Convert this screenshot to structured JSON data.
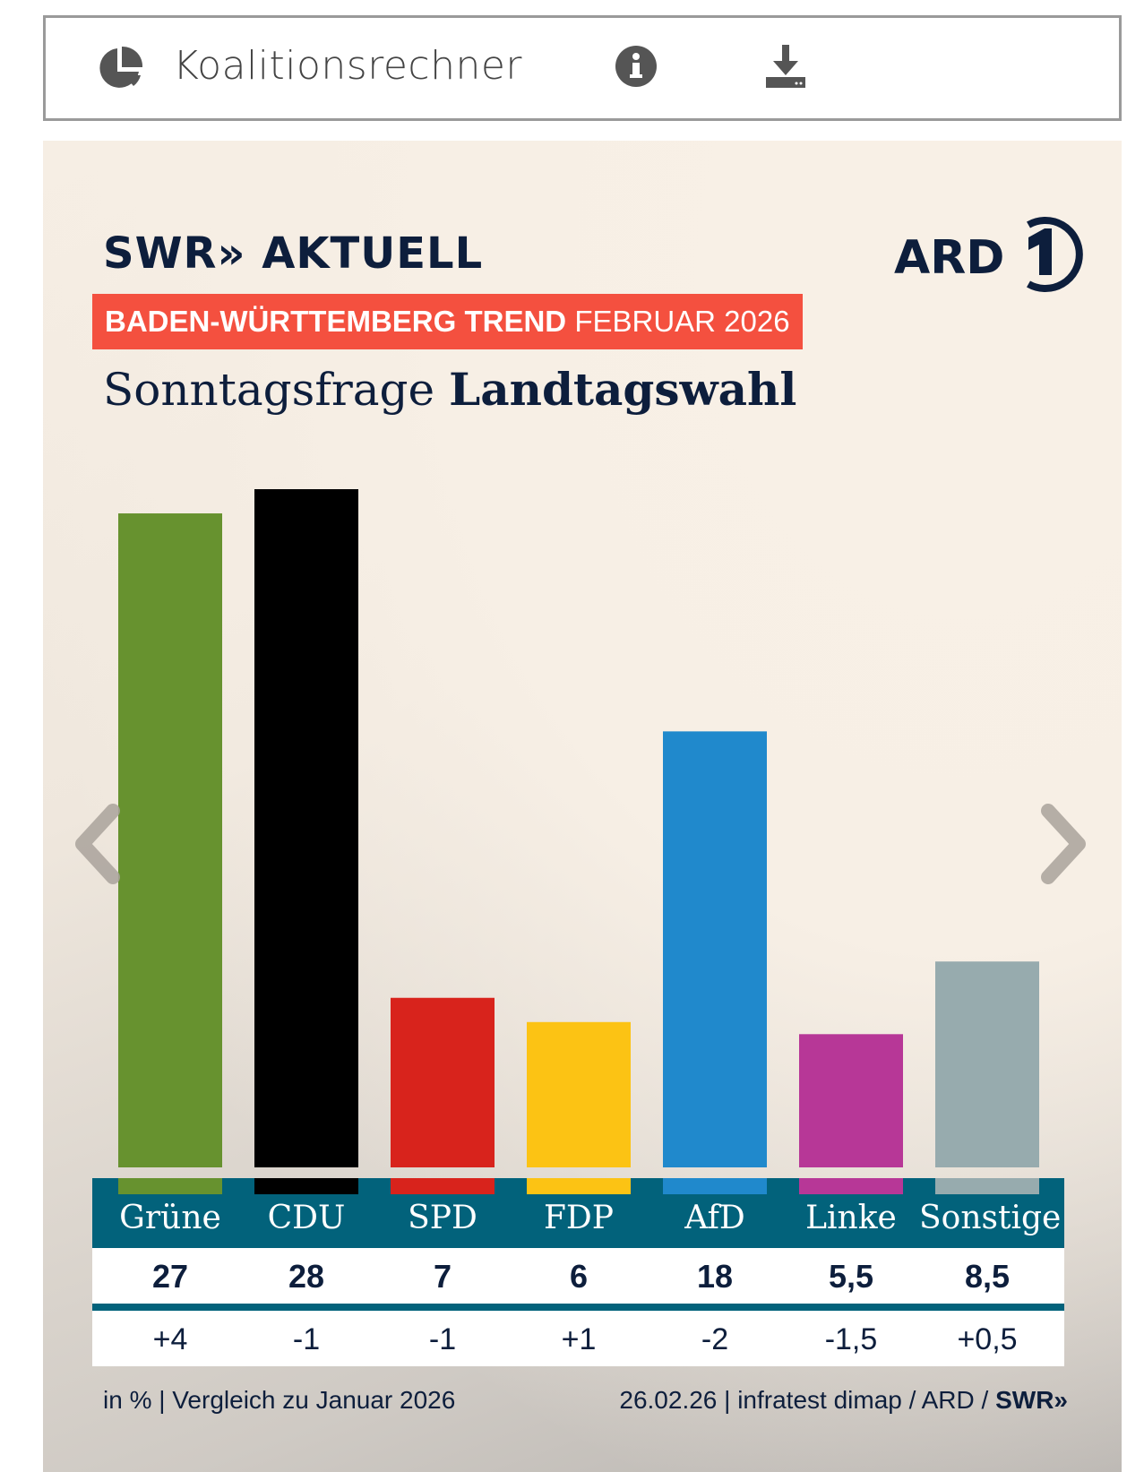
{
  "toolbar": {
    "label": "Koalitionsrechner",
    "icons": [
      "pie-chart-icon",
      "info-icon",
      "download-icon"
    ]
  },
  "header": {
    "swr_logo": "SWR» AKTUELL",
    "ard_logo": "ARD 1",
    "banner_bold": "BADEN-WÜRTTEMBERG TREND",
    "banner_regular": "FEBRUAR 2026",
    "title_regular": "Sonntagsfrage",
    "title_bold": "Landtagswahl"
  },
  "chart_data": {
    "type": "bar",
    "title": "Sonntagsfrage Landtagswahl",
    "categories": [
      "Grüne",
      "CDU",
      "SPD",
      "FDP",
      "AfD",
      "Linke",
      "Sonstige"
    ],
    "values": [
      27,
      28,
      7,
      6,
      18,
      5.5,
      8.5
    ],
    "value_labels": [
      "27",
      "28",
      "7",
      "6",
      "18",
      "5,5",
      "8,5"
    ],
    "changes": [
      "+4",
      "-1",
      "-1",
      "+1",
      "-2",
      "-1,5",
      "+0,5"
    ],
    "colors": [
      "#67922f",
      "#000000",
      "#d8231c",
      "#fcc314",
      "#2089cc",
      "#b73797",
      "#97abae"
    ],
    "ylabel": "in %",
    "ylim": [
      0,
      28
    ],
    "grid": false
  },
  "footer": {
    "left": "in % | Vergleich zu Januar 2026",
    "right": "26.02.26 | infratest dimap / ARD / ",
    "right_logo": "SWR»"
  },
  "colors": {
    "teal": "#02627b",
    "banner": "#f4503f",
    "navy": "#0d1e3c"
  }
}
